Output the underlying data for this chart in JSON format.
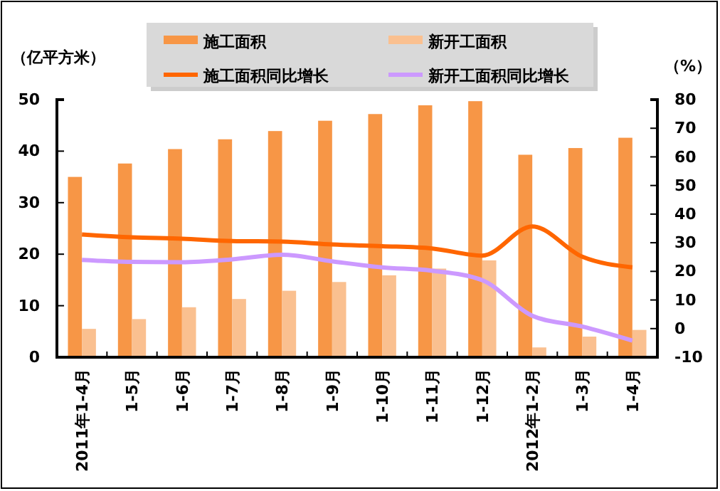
{
  "chart_data": {
    "type": "bar",
    "ylabel": "（亿平方米）",
    "y2label": "（%）",
    "categories": [
      "2011年1-4月",
      "1-5月",
      "1-6月",
      "1-7月",
      "1-8月",
      "1-9月",
      "1-10月",
      "1-11月",
      "1-12月",
      "2012年1-2月",
      "1-3月",
      "1-4月"
    ],
    "series": [
      {
        "name": "施工面积",
        "color": "#f79646",
        "values": [
          35,
          37.6,
          40.4,
          42.3,
          43.9,
          45.9,
          47.2,
          48.9,
          49.7,
          39.3,
          40.6,
          42.6
        ]
      },
      {
        "name": "新开工面积",
        "color": "#fac090",
        "values": [
          5.5,
          7.4,
          9.7,
          11.3,
          12.9,
          14.6,
          15.9,
          17.2,
          18.8,
          1.9,
          4.0,
          5.3
        ]
      },
      {
        "name": "施工面积同比增长",
        "type": "line",
        "axis": "y2",
        "color": "#ff6600",
        "values": [
          32.9,
          31.9,
          31.4,
          30.6,
          30.4,
          29.4,
          28.8,
          28,
          25.5,
          35.7,
          25.1,
          21.4
        ]
      },
      {
        "name": "新开工面积同比增长",
        "type": "line",
        "axis": "y2",
        "color": "#cc99ff",
        "values": [
          24,
          23.3,
          23.2,
          24.2,
          25.8,
          23.5,
          21.4,
          20.2,
          16.9,
          4.5,
          0.7,
          -4.2
        ]
      }
    ],
    "ylim": [
      0,
      50
    ],
    "yticks": [
      0,
      10,
      20,
      30,
      40,
      50
    ],
    "y2lim": [
      -10,
      80
    ],
    "y2ticks": [
      -10,
      0,
      10,
      20,
      30,
      40,
      50,
      60,
      70,
      80
    ],
    "legend": "top",
    "grid": false,
    "marker": "none",
    "line_style": "solid"
  }
}
